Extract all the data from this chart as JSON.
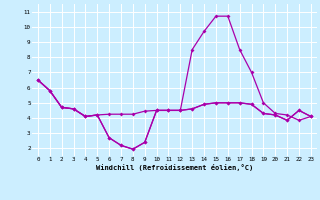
{
  "xlabel": "Windchill (Refroidissement éolien,°C)",
  "bg_color": "#cceeff",
  "grid_color": "#ffffff",
  "line_color": "#aa00aa",
  "xlim": [
    -0.5,
    23.5
  ],
  "ylim": [
    1.5,
    11.5
  ],
  "yticks": [
    2,
    3,
    4,
    5,
    6,
    7,
    8,
    9,
    10,
    11
  ],
  "xticks": [
    0,
    1,
    2,
    3,
    4,
    5,
    6,
    7,
    8,
    9,
    10,
    11,
    12,
    13,
    14,
    15,
    16,
    17,
    18,
    19,
    20,
    21,
    22,
    23
  ],
  "series1": [
    6.5,
    5.8,
    4.7,
    4.6,
    4.1,
    4.2,
    2.7,
    2.2,
    1.95,
    2.4,
    4.5,
    4.5,
    4.5,
    4.6,
    4.9,
    5.0,
    5.0,
    5.0,
    4.9,
    4.3,
    4.2,
    3.85,
    4.5,
    4.1
  ],
  "series2": [
    6.5,
    5.8,
    4.7,
    4.6,
    4.1,
    4.2,
    2.7,
    2.2,
    1.95,
    2.4,
    4.5,
    4.5,
    4.5,
    8.5,
    9.7,
    10.7,
    10.7,
    8.5,
    7.0,
    5.0,
    4.3,
    4.2,
    3.85,
    4.1
  ],
  "series3": [
    6.5,
    5.8,
    4.7,
    4.6,
    4.1,
    4.2,
    4.25,
    4.25,
    4.25,
    4.45,
    4.5,
    4.5,
    4.5,
    4.6,
    4.9,
    5.0,
    5.0,
    5.0,
    4.9,
    4.3,
    4.2,
    3.85,
    4.5,
    4.1
  ]
}
